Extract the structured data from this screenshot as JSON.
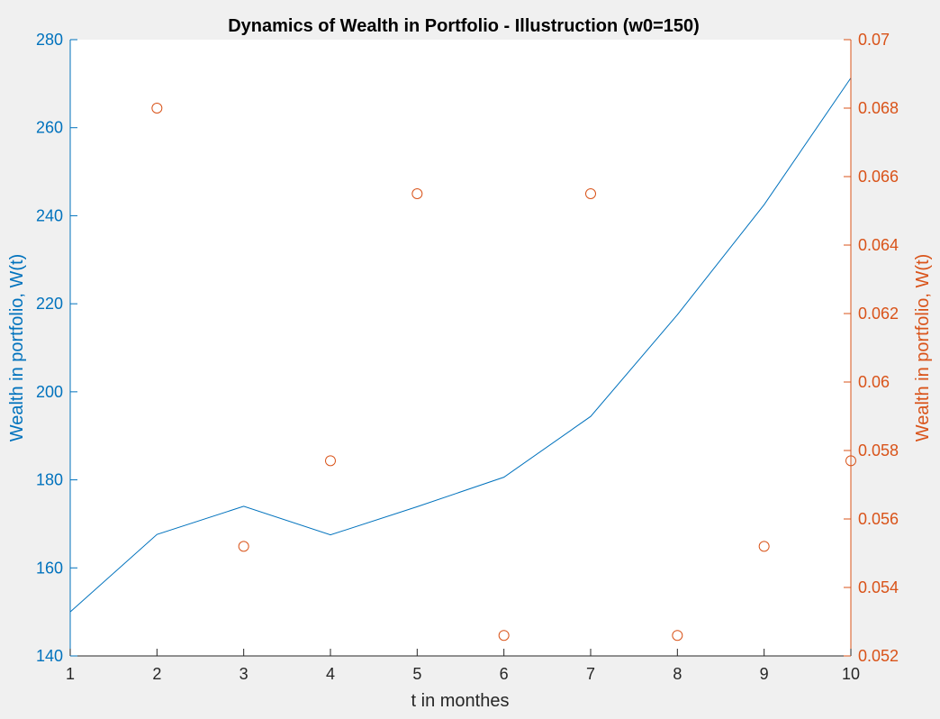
{
  "chart_data": {
    "type": "line",
    "title": "Dynamics of Wealth in Portfolio - Illustruction (w0=150)",
    "xlabel": "t in monthes",
    "ylabel_left": "Wealth in portfolio, W(t)",
    "ylabel_right": "Wealth in portfolio, W(t)",
    "x": [
      1,
      2,
      3,
      4,
      5,
      6,
      7,
      8,
      9,
      10
    ],
    "xlim": [
      1,
      10
    ],
    "xticks": [
      "1",
      "2",
      "3",
      "4",
      "5",
      "6",
      "7",
      "8",
      "9",
      "10"
    ],
    "ylim_left": [
      140,
      280
    ],
    "yticks_left": [
      "140",
      "160",
      "180",
      "200",
      "220",
      "240",
      "260",
      "280"
    ],
    "ylim_right": [
      0.052,
      0.07
    ],
    "yticks_right": [
      "0.052",
      "0.054",
      "0.056",
      "0.058",
      "0.06",
      "0.062",
      "0.064",
      "0.066",
      "0.068",
      "0.07"
    ],
    "grid": false,
    "series": [
      {
        "axis": "left",
        "type": "line",
        "color": "#0072bd",
        "values": [
          150,
          167.6,
          174.0,
          167.5,
          173.9,
          180.6,
          194.4,
          217.5,
          242.5,
          271.3
        ]
      },
      {
        "axis": "right",
        "type": "scatter",
        "marker": "circle",
        "color": "#d95319",
        "x": [
          2,
          3,
          4,
          5,
          6,
          7,
          8,
          9,
          10
        ],
        "values": [
          0.068,
          0.0552,
          0.0577,
          0.0655,
          0.0526,
          0.0655,
          0.0526,
          0.0552,
          0.0577
        ]
      }
    ]
  },
  "colors": {
    "left_axis": "#0072bd",
    "right_axis": "#d95319",
    "x_axis": "#262626",
    "plot_background": "#ffffff",
    "figure_background": "#f0f0f0"
  }
}
